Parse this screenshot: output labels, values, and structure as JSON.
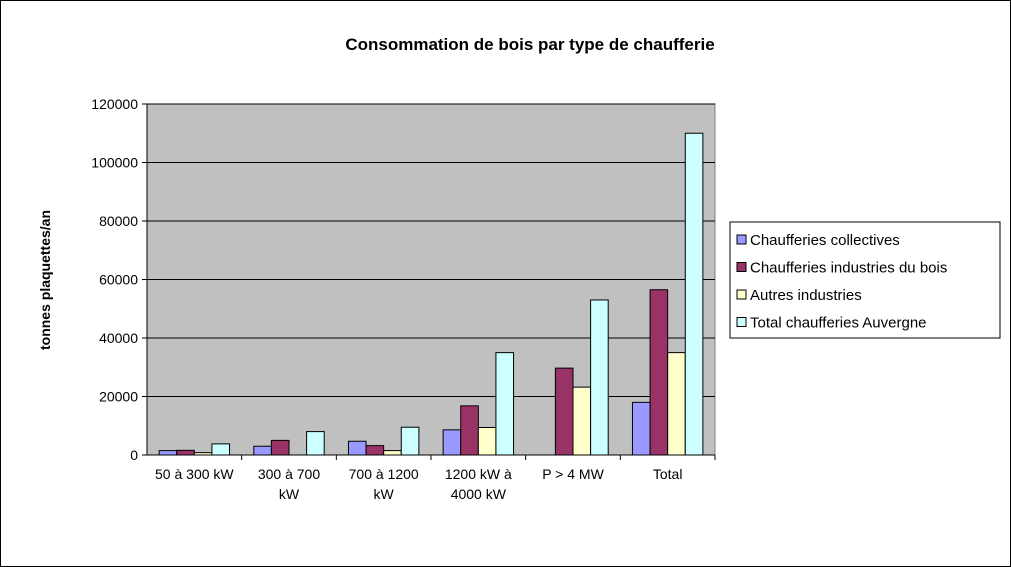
{
  "chart_data": {
    "type": "bar",
    "title": "Consommation de bois par type de chaufferie",
    "y_label": "tonnes plaquettes/an",
    "categories": [
      "50 à 300 kW",
      "300 à 700 kW",
      "700 à 1200 kW",
      "1200 kW à 4000 kW",
      "P > 4 MW",
      "Total"
    ],
    "series": [
      {
        "name": "Chaufferies collectives",
        "color": "#9999ff",
        "values": [
          1500,
          3000,
          4700,
          8600,
          null,
          18000
        ]
      },
      {
        "name": "Chaufferies industries du bois",
        "color": "#993366",
        "values": [
          1600,
          5000,
          3200,
          16800,
          29700,
          56500
        ]
      },
      {
        "name": "Autres industries",
        "color": "#ffffcc",
        "values": [
          800,
          null,
          1500,
          9400,
          23200,
          35000
        ]
      },
      {
        "name": "Total chaufferies Auvergne",
        "color": "#ccffff",
        "values": [
          3800,
          8000,
          9500,
          35000,
          53000,
          110000
        ]
      }
    ],
    "ylim": [
      0,
      120000
    ],
    "yticks": [
      0,
      20000,
      40000,
      60000,
      80000,
      100000,
      120000
    ],
    "grid": true,
    "legend": "right",
    "plot_background": "#c0c0c0"
  }
}
